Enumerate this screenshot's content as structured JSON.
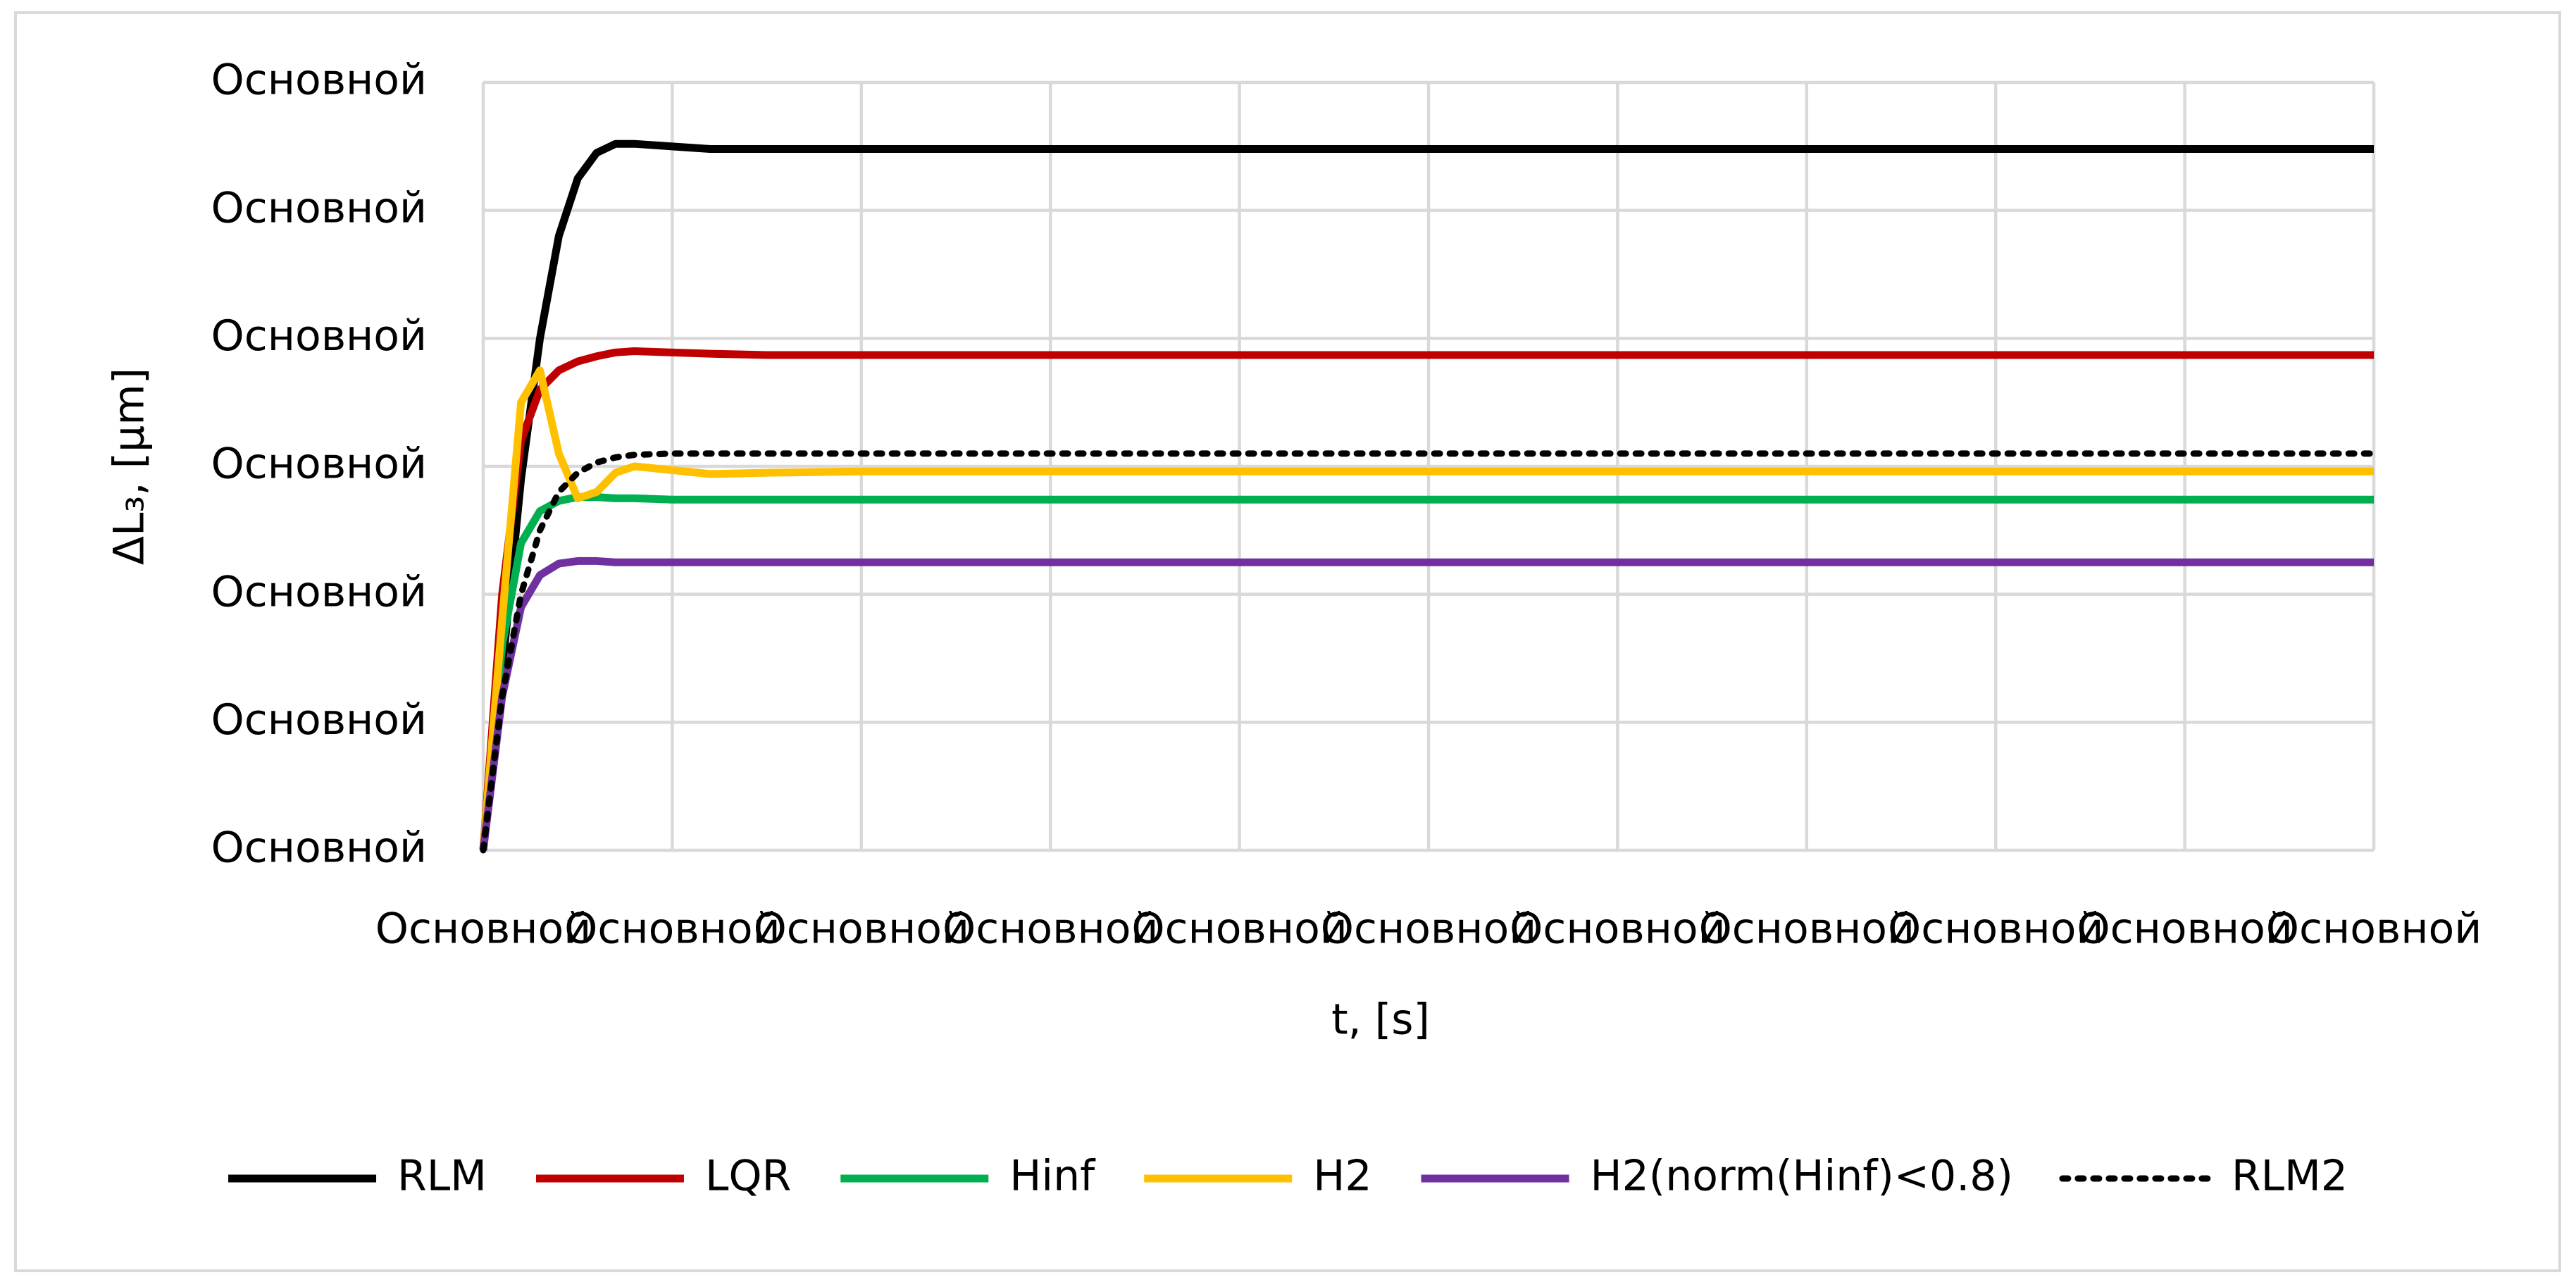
{
  "chart_data": {
    "type": "line",
    "x_label": "t, [s]",
    "y_label": "ΔL₃, [μm]",
    "x": [
      0,
      0.1,
      0.2,
      0.3,
      0.4,
      0.5,
      0.6,
      0.7,
      0.8,
      1.0,
      1.2,
      1.5,
      2,
      3,
      5,
      10
    ],
    "series": [
      {
        "name": "RLM",
        "color": "#000000",
        "style": "solid",
        "values": [
          0,
          1.4,
          2.9,
          4.0,
          4.8,
          5.25,
          5.45,
          5.52,
          5.52,
          5.5,
          5.48,
          5.48,
          5.48,
          5.48,
          5.48,
          5.48
        ]
      },
      {
        "name": "LQR",
        "color": "#c00000",
        "style": "solid",
        "values": [
          0,
          2.0,
          3.2,
          3.6,
          3.75,
          3.82,
          3.86,
          3.89,
          3.9,
          3.89,
          3.88,
          3.87,
          3.87,
          3.87,
          3.87,
          3.87
        ]
      },
      {
        "name": "Hinf",
        "color": "#00b050",
        "style": "solid",
        "values": [
          0,
          1.6,
          2.4,
          2.65,
          2.73,
          2.76,
          2.76,
          2.75,
          2.75,
          2.74,
          2.74,
          2.74,
          2.74,
          2.74,
          2.74,
          2.74
        ]
      },
      {
        "name": "H2",
        "color": "#ffc000",
        "style": "solid",
        "values": [
          0,
          1.8,
          3.5,
          3.75,
          3.1,
          2.75,
          2.8,
          2.95,
          3.0,
          2.97,
          2.94,
          2.95,
          2.96,
          2.96,
          2.96,
          2.96
        ]
      },
      {
        "name": "H2(norm(Hinf)<0.8)",
        "color": "#7030a0",
        "style": "solid",
        "values": [
          0,
          1.2,
          1.9,
          2.15,
          2.24,
          2.26,
          2.26,
          2.25,
          2.25,
          2.25,
          2.25,
          2.25,
          2.25,
          2.25,
          2.25,
          2.25
        ]
      },
      {
        "name": "RLM2",
        "color": "#000000",
        "style": "dotted",
        "values": [
          0,
          1.2,
          2.0,
          2.5,
          2.8,
          2.95,
          3.03,
          3.07,
          3.09,
          3.1,
          3.1,
          3.1,
          3.1,
          3.1,
          3.1,
          3.1
        ]
      }
    ],
    "xlim": [
      0,
      10
    ],
    "ylim": [
      0,
      6
    ],
    "xticks": [
      {
        "value": 0,
        "label": "Основной"
      },
      {
        "value": 1,
        "label": "Основной"
      },
      {
        "value": 2,
        "label": "Основной"
      },
      {
        "value": 3,
        "label": "Основной"
      },
      {
        "value": 4,
        "label": "Основной"
      },
      {
        "value": 5,
        "label": "Основной"
      },
      {
        "value": 6,
        "label": "Основной"
      },
      {
        "value": 7,
        "label": "Основной"
      },
      {
        "value": 8,
        "label": "Основной"
      },
      {
        "value": 9,
        "label": "Основной"
      },
      {
        "value": 10,
        "label": "Основной"
      }
    ],
    "yticks": [
      {
        "value": 0,
        "label": "Основной"
      },
      {
        "value": 1,
        "label": "Основной"
      },
      {
        "value": 2,
        "label": "Основной"
      },
      {
        "value": 3,
        "label": "Основной"
      },
      {
        "value": 4,
        "label": "Основной"
      },
      {
        "value": 5,
        "label": "Основной"
      },
      {
        "value": 6,
        "label": "Основной"
      }
    ],
    "grid": true,
    "legend": "bottom"
  }
}
